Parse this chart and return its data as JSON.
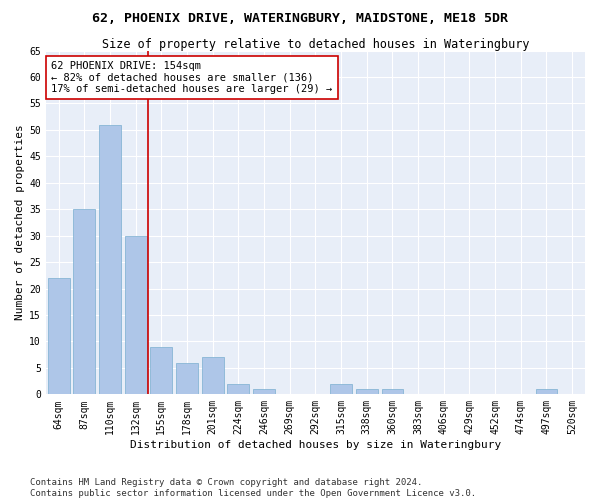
{
  "title1": "62, PHOENIX DRIVE, WATERINGBURY, MAIDSTONE, ME18 5DR",
  "title2": "Size of property relative to detached houses in Wateringbury",
  "xlabel": "Distribution of detached houses by size in Wateringbury",
  "ylabel": "Number of detached properties",
  "categories": [
    "64sqm",
    "87sqm",
    "110sqm",
    "132sqm",
    "155sqm",
    "178sqm",
    "201sqm",
    "224sqm",
    "246sqm",
    "269sqm",
    "292sqm",
    "315sqm",
    "338sqm",
    "360sqm",
    "383sqm",
    "406sqm",
    "429sqm",
    "452sqm",
    "474sqm",
    "497sqm",
    "520sqm"
  ],
  "values": [
    22,
    35,
    51,
    30,
    9,
    6,
    7,
    2,
    1,
    0,
    0,
    2,
    1,
    1,
    0,
    0,
    0,
    0,
    0,
    1,
    0
  ],
  "bar_color": "#aec6e8",
  "bar_edge_color": "#7aaed0",
  "background_color": "#e8eef8",
  "grid_color": "#ffffff",
  "vline_x": 3.5,
  "vline_color": "#cc0000",
  "annotation_title": "62 PHOENIX DRIVE: 154sqm",
  "annotation_line1": "← 82% of detached houses are smaller (136)",
  "annotation_line2": "17% of semi-detached houses are larger (29) →",
  "annotation_box_color": "#ffffff",
  "annotation_box_edgecolor": "#cc0000",
  "ylim": [
    0,
    65
  ],
  "yticks": [
    0,
    5,
    10,
    15,
    20,
    25,
    30,
    35,
    40,
    45,
    50,
    55,
    60,
    65
  ],
  "footnote1": "Contains HM Land Registry data © Crown copyright and database right 2024.",
  "footnote2": "Contains public sector information licensed under the Open Government Licence v3.0.",
  "title_fontsize": 9.5,
  "subtitle_fontsize": 8.5,
  "axis_label_fontsize": 8,
  "tick_fontsize": 7,
  "annotation_fontsize": 7.5,
  "footnote_fontsize": 6.5
}
